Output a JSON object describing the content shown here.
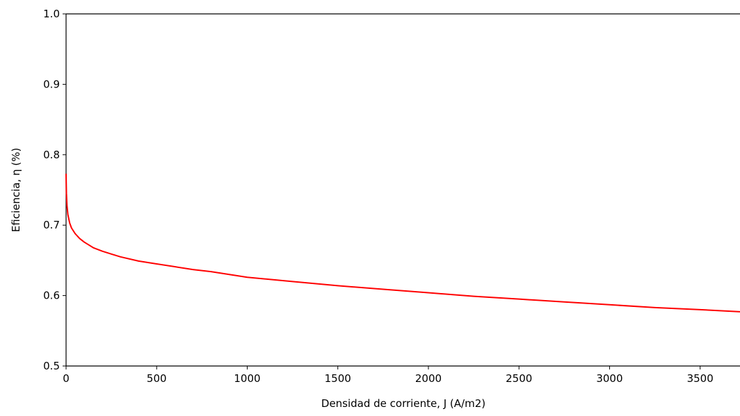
{
  "chart_data": {
    "type": "line",
    "title": "",
    "xlabel": "Densidad de corriente, J (A/m2)",
    "ylabel": "Eficiencia, η (%)",
    "xlim": [
      0,
      3720
    ],
    "ylim": [
      0.5,
      1.0
    ],
    "x_ticks": [
      0,
      500,
      1000,
      1500,
      2000,
      2500,
      3000,
      3500
    ],
    "y_ticks": [
      0.5,
      0.6,
      0.7,
      0.8,
      0.9,
      1.0
    ],
    "x_tick_labels": [
      "0",
      "500",
      "1000",
      "1500",
      "2000",
      "2500",
      "3000",
      "3500"
    ],
    "y_tick_labels": [
      "0.5",
      "0.6",
      "0.7",
      "0.8",
      "0.9",
      "1.0"
    ],
    "grid": false,
    "series": [
      {
        "color": "#ff0000",
        "x": [
          0,
          2,
          5,
          10,
          20,
          30,
          50,
          75,
          100,
          150,
          200,
          250,
          300,
          400,
          500,
          600,
          700,
          800,
          1000,
          1250,
          1500,
          1750,
          2000,
          2250,
          2500,
          2750,
          3000,
          3250,
          3500,
          3720
        ],
        "y": [
          0.773,
          0.745,
          0.728,
          0.715,
          0.703,
          0.696,
          0.688,
          0.681,
          0.676,
          0.668,
          0.663,
          0.659,
          0.655,
          0.649,
          0.645,
          0.641,
          0.637,
          0.634,
          0.626,
          0.62,
          0.614,
          0.609,
          0.604,
          0.599,
          0.595,
          0.591,
          0.587,
          0.583,
          0.58,
          0.577
        ]
      }
    ]
  }
}
